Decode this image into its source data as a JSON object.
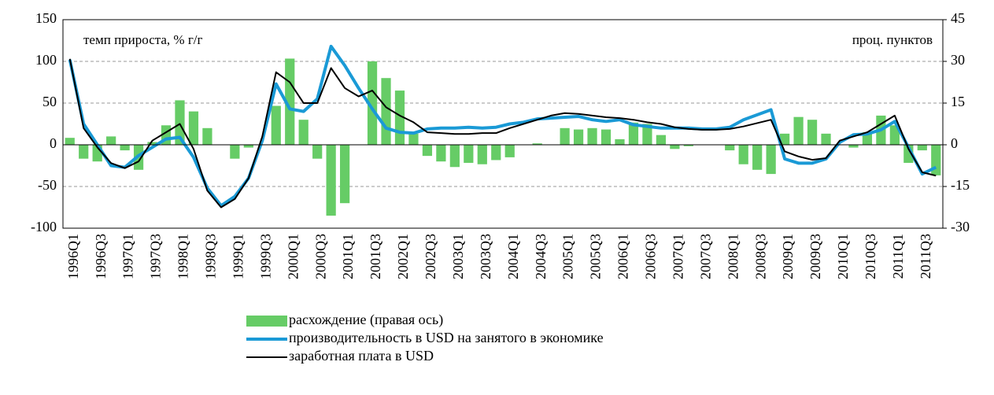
{
  "chart_data": {
    "type": "bar_line",
    "annotations": [
      "темп прироста, % г/г",
      "проц. пунктов"
    ],
    "categories": [
      "1996Q1",
      null,
      "1996Q3",
      null,
      "1997Q1",
      null,
      "1997Q3",
      null,
      "1998Q1",
      null,
      "1998Q3",
      null,
      "1999Q1",
      null,
      "1999Q3",
      null,
      "2000Q1",
      null,
      "2000Q3",
      null,
      "2001Q1",
      null,
      "2001Q3",
      null,
      "2002Q1",
      null,
      "2002Q3",
      null,
      "2003Q1",
      null,
      "2003Q3",
      null,
      "2004Q1",
      null,
      "2004Q3",
      null,
      "2005Q1",
      null,
      "2005Q3",
      null,
      "2006Q1",
      null,
      "2006Q3",
      null,
      "2007Q1",
      null,
      "2007Q3",
      null,
      "2008Q1",
      null,
      "2008Q3",
      null,
      "2009Q1",
      null,
      "2009Q3",
      null,
      "2010Q1",
      null,
      "2010Q3",
      null,
      "2011Q1",
      null,
      "2011Q3",
      null
    ],
    "series": [
      {
        "name": "расхождение (правая ось)",
        "type": "bar",
        "axis": "y2",
        "color": "#66cc66",
        "values": [
          2.5,
          -5,
          -6,
          3,
          -2,
          -9,
          1,
          7,
          16,
          12,
          6,
          0,
          -5,
          -1,
          0,
          14,
          31,
          9,
          -5,
          -25.5,
          -21,
          0,
          30,
          24,
          19.5,
          4,
          -4,
          -6,
          -8,
          -6.5,
          -7,
          -5.5,
          -4.5,
          0,
          0.5,
          0,
          6,
          5.5,
          6,
          5.5,
          2,
          8,
          7.5,
          3.5,
          -1.5,
          -0.5,
          0,
          0,
          -2,
          -7,
          -9,
          -10.5,
          4,
          10,
          9,
          4,
          0,
          -1,
          4.5,
          10.5,
          7,
          -6.5,
          -2,
          -11
        ]
      },
      {
        "name": "производительность в USD на занятого в экономике",
        "type": "line",
        "color": "#1a9ad6",
        "values": [
          102,
          25,
          0,
          -25,
          -27,
          -13,
          -3,
          7,
          9,
          -15,
          -52,
          -73,
          -62,
          -40,
          5,
          73,
          43,
          40,
          55,
          118,
          95,
          68,
          43,
          20,
          15,
          14,
          19,
          20,
          20,
          21,
          20,
          21,
          25,
          27,
          31,
          32,
          33,
          34,
          30,
          28,
          30,
          24,
          22,
          20,
          20,
          20,
          19,
          19,
          21,
          30,
          36,
          42,
          -17,
          -22,
          -22,
          -17,
          3,
          12,
          13,
          18,
          28,
          -3,
          -35,
          -27
        ]
      },
      {
        "name": "заработная плата в USD",
        "type": "line",
        "color": "#000000",
        "values": [
          103,
          20,
          -3,
          -22,
          -28,
          -20,
          5,
          15,
          25,
          -5,
          -55,
          -75,
          -65,
          -40,
          10,
          87,
          75,
          50,
          50,
          92,
          68,
          58,
          65,
          45,
          35,
          27,
          15,
          14,
          13,
          13,
          14,
          14,
          20,
          25,
          30,
          35,
          38,
          37,
          35,
          33,
          32,
          30,
          27,
          25,
          21,
          19,
          18,
          18,
          19,
          22,
          26,
          30,
          -8,
          -14,
          -18,
          -16,
          5,
          10,
          15,
          25,
          35,
          -5,
          -33,
          -37
        ]
      }
    ],
    "ylim": [
      -100,
      150
    ],
    "yticks": [
      -100,
      -50,
      0,
      50,
      100,
      150
    ],
    "y2lim": [
      -30,
      45
    ],
    "y2ticks": [
      -30,
      -15,
      0,
      15,
      30,
      45
    ],
    "grid": true,
    "legend": "bottom"
  }
}
